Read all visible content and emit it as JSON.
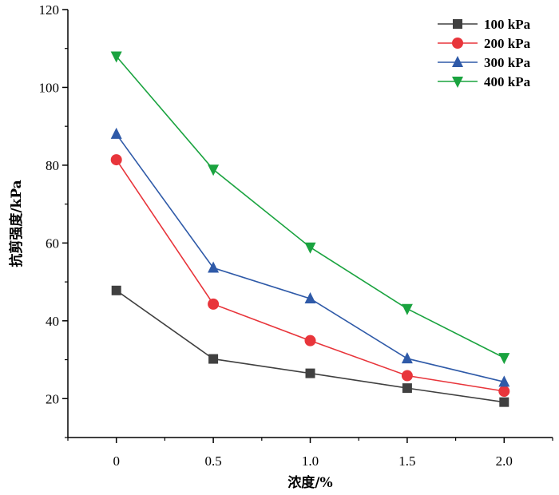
{
  "chart_data": {
    "type": "line",
    "title": "",
    "xlabel": "浓度/%",
    "ylabel": "抗剪强度/kPa",
    "x": [
      0,
      0.5,
      1.0,
      1.5,
      2.0
    ],
    "x_tick_labels": [
      "0",
      "0.5",
      "1.0",
      "1.5",
      "2.0"
    ],
    "xlim": [
      -0.25,
      2.25
    ],
    "ylim": [
      10,
      120
    ],
    "y_ticks": [
      20,
      40,
      60,
      80,
      100,
      120
    ],
    "y_tick_labels": [
      "20",
      "40",
      "60",
      "80",
      "100",
      "120"
    ],
    "grid": false,
    "legend_position": "top-right",
    "series": [
      {
        "name": "100 kPa",
        "color": "#404040",
        "marker": "square",
        "values": [
          47.8,
          30.2,
          26.5,
          22.7,
          19.1
        ]
      },
      {
        "name": "200 kPa",
        "color": "#e8353b",
        "marker": "circle",
        "values": [
          81.4,
          44.3,
          34.9,
          25.9,
          21.9
        ]
      },
      {
        "name": "300 kPa",
        "color": "#2f5aa8",
        "marker": "triangle-up",
        "values": [
          88.0,
          53.6,
          45.7,
          30.3,
          24.3
        ]
      },
      {
        "name": "400 kPa",
        "color": "#1aa33f",
        "marker": "triangle-down",
        "values": [
          108.0,
          78.9,
          58.9,
          43.1,
          30.5
        ]
      }
    ]
  }
}
